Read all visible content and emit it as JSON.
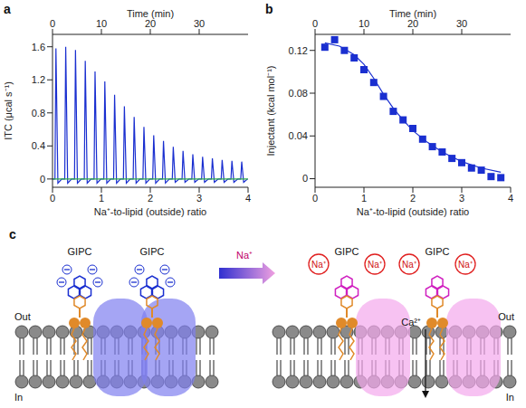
{
  "chart_data": [
    {
      "panel": "a",
      "type": "line",
      "xlabel": "Na⁺-to-lipid (outside) ratio",
      "ylabel": "ITC (μcal s⁻¹)",
      "x2label": "Time (min)",
      "xlim": [
        0,
        4
      ],
      "xticks": [
        0,
        1,
        2,
        3,
        4
      ],
      "x2lim": [
        0,
        40
      ],
      "x2ticks": [
        0,
        10,
        20,
        30
      ],
      "ylim": [
        -0.1,
        1.75
      ],
      "yticks": [
        0,
        0.4,
        0.8,
        1.2,
        1.6
      ],
      "grid": false,
      "series": [
        {
          "color": "#1a2fd0",
          "x": [
            0,
            0.05,
            0.07,
            0.11,
            0.19,
            0.25,
            0.27,
            0.31,
            0.39,
            0.45,
            0.47,
            0.51,
            0.59,
            0.65,
            0.67,
            0.71,
            0.79,
            0.85,
            0.87,
            0.91,
            0.99,
            1.05,
            1.07,
            1.11,
            1.19,
            1.25,
            1.27,
            1.31,
            1.39,
            1.45,
            1.47,
            1.51,
            1.59,
            1.65,
            1.67,
            1.71,
            1.79,
            1.85,
            1.87,
            1.91,
            1.99,
            2.05,
            2.07,
            2.11,
            2.19,
            2.25,
            2.27,
            2.31,
            2.39,
            2.45,
            2.47,
            2.51,
            2.59,
            2.65,
            2.67,
            2.71,
            2.79,
            2.85,
            2.87,
            2.91,
            2.99,
            3.05,
            3.07,
            3.11,
            3.19,
            3.25,
            3.27,
            3.31,
            3.39,
            3.45,
            3.47,
            3.51,
            3.59,
            3.65,
            3.67,
            3.71,
            3.79,
            3.85,
            3.87,
            3.91,
            3.99
          ],
          "values": [
            0,
            0,
            1.58,
            -0.05,
            0,
            0,
            1.6,
            -0.05,
            0,
            0,
            1.56,
            -0.05,
            0,
            0,
            1.43,
            -0.05,
            0,
            0,
            1.3,
            -0.05,
            0,
            0,
            1.18,
            -0.05,
            0,
            0,
            1.02,
            -0.05,
            0,
            0,
            0.88,
            -0.05,
            0,
            0,
            0.75,
            -0.05,
            0,
            0,
            0.63,
            -0.05,
            0,
            0,
            0.53,
            -0.05,
            0,
            0,
            0.46,
            -0.05,
            0,
            0,
            0.39,
            -0.04,
            0,
            0,
            0.34,
            -0.04,
            0,
            0,
            0.3,
            -0.04,
            0,
            0,
            0.27,
            -0.04,
            0,
            0,
            0.25,
            -0.04,
            0,
            0,
            0.23,
            -0.04,
            0,
            0,
            0.22,
            -0.04,
            0,
            0,
            0.21,
            -0.04,
            0
          ]
        },
        {
          "color": "#2eaa4a",
          "axis": "x2",
          "x": [
            0,
            40
          ],
          "values": [
            0,
            0
          ]
        }
      ]
    },
    {
      "panel": "b",
      "type": "scatter",
      "xlabel": "Na⁺-to-lipid (outside) ratio",
      "ylabel": "Injectant (kcal mol⁻¹)",
      "x2label": "Time (min)",
      "xlim": [
        0,
        4
      ],
      "xticks": [
        0,
        1,
        2,
        3,
        4
      ],
      "x2lim": [
        0,
        40
      ],
      "x2ticks": [
        0,
        10,
        20,
        30
      ],
      "ylim": [
        -0.008,
        0.135
      ],
      "yticks": [
        0,
        0.04,
        0.08,
        0.12
      ],
      "grid": false,
      "series": [
        {
          "type": "scatter",
          "marker": "square",
          "color": "#1a2fd0",
          "x": [
            0.2,
            0.4,
            0.6,
            0.8,
            1.0,
            1.2,
            1.4,
            1.6,
            1.8,
            2.0,
            2.2,
            2.4,
            2.6,
            2.8,
            3.0,
            3.2,
            3.4,
            3.6,
            3.8
          ],
          "values": [
            0.123,
            0.13,
            0.12,
            0.113,
            0.102,
            0.09,
            0.077,
            0.063,
            0.055,
            0.047,
            0.037,
            0.03,
            0.025,
            0.019,
            0.015,
            0.01,
            0.008,
            0.002,
            0.001
          ]
        },
        {
          "type": "line",
          "color": "#1a2fd0",
          "x": [
            0.2,
            0.5,
            0.8,
            1.0,
            1.2,
            1.4,
            1.6,
            1.8,
            2.0,
            2.3,
            2.6,
            3.0,
            3.4,
            3.8
          ],
          "values": [
            0.127,
            0.124,
            0.116,
            0.107,
            0.094,
            0.079,
            0.066,
            0.055,
            0.045,
            0.034,
            0.025,
            0.016,
            0.01,
            0.006
          ]
        }
      ]
    }
  ],
  "diagram": {
    "panel": "c",
    "left": {
      "molecules": [
        "GIPC",
        "GIPC"
      ],
      "outside": "Out",
      "inside": "In"
    },
    "arrow": "Na⁺",
    "right": {
      "molecules": [
        "GIPC",
        "GIPC"
      ],
      "ions": [
        "Na⁺",
        "Na⁺",
        "Na⁺",
        "Na⁺"
      ],
      "flux": "Ca²⁺",
      "outside": "Out",
      "inside": "In"
    }
  }
}
